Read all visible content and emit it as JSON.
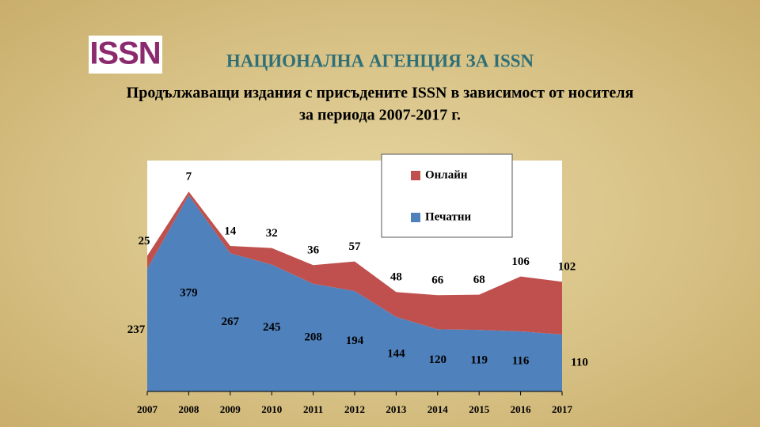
{
  "logo": "ISSN",
  "chart_data": {
    "type": "stacked-area",
    "title": "НАЦИОНАЛНА АГЕНЦИЯ ЗА ISSN",
    "subtitle": [
      "Продължаващи издания с присъдените ISSN в зависимост от носителя",
      "за периода 2007-2017 г."
    ],
    "categories": [
      "2007",
      "2008",
      "2009",
      "2010",
      "2011",
      "2012",
      "2013",
      "2014",
      "2015",
      "2016",
      "2017"
    ],
    "series": [
      {
        "name": "Печатни",
        "color": "#4f81bd",
        "values": [
          237,
          379,
          267,
          245,
          208,
          194,
          144,
          120,
          119,
          116,
          110
        ]
      },
      {
        "name": "Онлайн",
        "color": "#c0504d",
        "values": [
          25,
          7,
          14,
          32,
          36,
          57,
          48,
          66,
          68,
          106,
          102
        ]
      }
    ],
    "ylim": [
      0,
      446
    ],
    "legend": "top-right"
  }
}
